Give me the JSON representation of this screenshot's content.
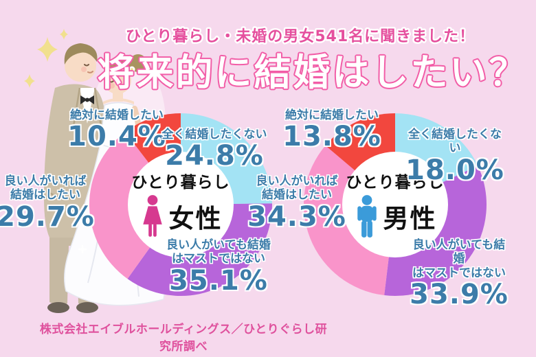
{
  "survey": {
    "subtitle": "ひとり暮らし・未婚の男女541名に聞きました！",
    "title": "将来的に結婚はしたい？",
    "source": "株式会社エイブルホールディングス／ひとりぐらし研究所調べ"
  },
  "colors": {
    "background": "#f6d9ed",
    "label_text": "#3c7ca9",
    "subtitle_pink": "#e5509e",
    "title_outline_pink": "#f25da7",
    "footer_pink": "#df519d",
    "female_icon": "#d6398f",
    "male_icon": "#3b9bd9",
    "segment_red": "#f2473e",
    "segment_lightblue": "#a3e3f4",
    "segment_pink": "#f994ca",
    "segment_purple": "#b765da"
  },
  "chart_data": [
    {
      "type": "pie",
      "variant": "donut",
      "center_label": "ひとり暮らし",
      "group": "女性",
      "icon": "female",
      "unit": "%",
      "start": "top",
      "direction": "clockwise",
      "segments": [
        {
          "label": "全く結婚したくない",
          "value": 24.8,
          "display": "24.8%",
          "color": "#a3e3f4"
        },
        {
          "label": "良い人がいても結婚\nはマストではない",
          "value": 35.1,
          "display": "35.1%",
          "color": "#b765da"
        },
        {
          "label": "良い人がいれば\n結婚はしたい",
          "value": 29.7,
          "display": "29.7%",
          "color": "#f994ca"
        },
        {
          "label": "絶対に結婚したい",
          "value": 10.4,
          "display": "10.4%",
          "color": "#f2473e"
        }
      ]
    },
    {
      "type": "pie",
      "variant": "donut",
      "center_label": "ひとり暮らし",
      "group": "男性",
      "icon": "male",
      "unit": "%",
      "start": "top",
      "direction": "clockwise",
      "segments": [
        {
          "label": "全く結婚したくない",
          "value": 18.0,
          "display": "18.0%",
          "color": "#a3e3f4"
        },
        {
          "label": "良い人がいても結婚\nはマストではない",
          "value": 33.9,
          "display": "33.9%",
          "color": "#b765da"
        },
        {
          "label": "良い人がいれば\n結婚はしたい",
          "value": 34.3,
          "display": "34.3%",
          "color": "#f994ca"
        },
        {
          "label": "絶対に結婚したい",
          "value": 13.8,
          "display": "13.8%",
          "color": "#f2473e"
        }
      ]
    }
  ]
}
